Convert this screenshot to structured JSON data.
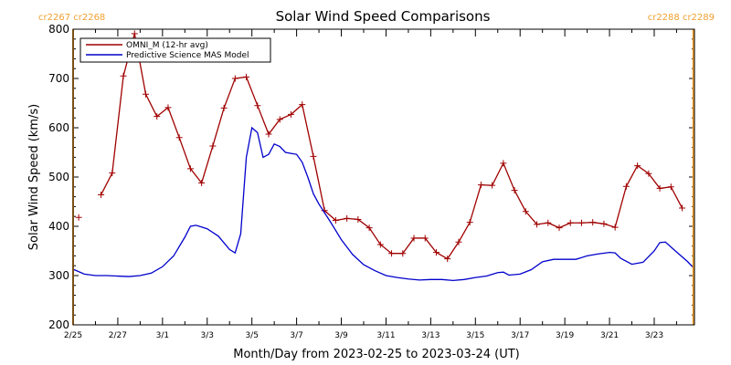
{
  "chart_data": {
    "type": "line",
    "title": "Solar Wind Speed Comparisons",
    "xlabel": "Month/Day from 2023-02-25 to 2023-03-24 (UT)",
    "ylabel": "Solar Wind Speed (km/s)",
    "xlim_days": [
      0,
      27.8
    ],
    "ylim": [
      200,
      800
    ],
    "yticks": [
      200,
      300,
      400,
      500,
      600,
      700,
      800
    ],
    "xticks": [
      {
        "day": 0,
        "label": "2/25"
      },
      {
        "day": 2,
        "label": "2/27"
      },
      {
        "day": 4,
        "label": "3/1"
      },
      {
        "day": 6,
        "label": "3/3"
      },
      {
        "day": 8,
        "label": "3/5"
      },
      {
        "day": 10,
        "label": "3/7"
      },
      {
        "day": 12,
        "label": "3/9"
      },
      {
        "day": 14,
        "label": "3/11"
      },
      {
        "day": 16,
        "label": "3/13"
      },
      {
        "day": 18,
        "label": "3/15"
      },
      {
        "day": 20,
        "label": "3/17"
      },
      {
        "day": 22,
        "label": "3/19"
      },
      {
        "day": 24,
        "label": "3/21"
      },
      {
        "day": 26,
        "label": "3/23"
      }
    ],
    "carrington_markers": [
      {
        "day": 0,
        "text": "cr2267 cr2268",
        "align": "left",
        "color": "#f0a030"
      },
      {
        "day": 27.75,
        "text": "cr2288 cr2289",
        "align": "right",
        "color": "#f0a030"
      }
    ],
    "legend_position": "top-left",
    "series": [
      {
        "name": "OMNI_M (12-hr avg)",
        "color": "#a00000",
        "markers": "plus",
        "segments": [
          [
            [
              0.25,
              418
            ]
          ],
          [
            [
              1.25,
              464
            ],
            [
              1.75,
              508
            ],
            [
              2.25,
              705
            ],
            [
              2.75,
              791
            ],
            [
              3.25,
              668
            ],
            [
              3.75,
              623
            ],
            [
              4.25,
              641
            ],
            [
              4.75,
              580
            ],
            [
              5.25,
              517
            ],
            [
              5.75,
              488
            ],
            [
              6.25,
              563
            ],
            [
              6.75,
              640
            ],
            [
              7.25,
              700
            ],
            [
              7.75,
              703
            ],
            [
              8.25,
              645
            ],
            [
              8.75,
              587
            ],
            [
              9.25,
              617
            ],
            [
              9.75,
              627
            ],
            [
              10.25,
              647
            ],
            [
              10.75,
              542
            ],
            [
              11.25,
              432
            ],
            [
              11.75,
              412
            ],
            [
              12.25,
              416
            ],
            [
              12.75,
              414
            ],
            [
              13.25,
              397
            ],
            [
              13.75,
              363
            ],
            [
              14.25,
              345
            ],
            [
              14.75,
              345
            ],
            [
              15.25,
              376
            ],
            [
              15.75,
              376
            ],
            [
              16.25,
              347
            ],
            [
              16.75,
              334
            ],
            [
              17.25,
              368
            ],
            [
              17.75,
              408
            ],
            [
              18.25,
              484
            ],
            [
              18.75,
              483
            ],
            [
              19.25,
              528
            ],
            [
              19.75,
              473
            ],
            [
              20.25,
              430
            ],
            [
              20.75,
              404
            ],
            [
              21.25,
              407
            ],
            [
              21.75,
              397
            ],
            [
              22.25,
              407
            ],
            [
              22.75,
              407
            ],
            [
              23.25,
              408
            ],
            [
              23.75,
              405
            ],
            [
              24.25,
              398
            ],
            [
              24.75,
              481
            ],
            [
              25.25,
              523
            ],
            [
              25.75,
              507
            ],
            [
              26.25,
              477
            ],
            [
              26.75,
              480
            ],
            [
              27.25,
              437
            ]
          ]
        ]
      },
      {
        "name": "Predictive Science MAS Model",
        "color": "#0000cc",
        "markers": "none",
        "segments": [
          [
            [
              0,
              313
            ],
            [
              0.5,
              303
            ],
            [
              1,
              300
            ],
            [
              1.5,
              300
            ],
            [
              2,
              299
            ],
            [
              2.5,
              298
            ],
            [
              3,
              300
            ],
            [
              3.5,
              305
            ],
            [
              4,
              318
            ],
            [
              4.5,
              340
            ],
            [
              5,
              378
            ],
            [
              5.25,
              400
            ],
            [
              5.5,
              402
            ],
            [
              6,
              395
            ],
            [
              6.5,
              380
            ],
            [
              7,
              353
            ],
            [
              7.25,
              346
            ],
            [
              7.5,
              385
            ],
            [
              7.75,
              540
            ],
            [
              8,
              600
            ],
            [
              8.25,
              590
            ],
            [
              8.5,
              540
            ],
            [
              8.75,
              546
            ],
            [
              9,
              567
            ],
            [
              9.25,
              562
            ],
            [
              9.5,
              550
            ],
            [
              9.75,
              548
            ],
            [
              10,
              546
            ],
            [
              10.25,
              530
            ],
            [
              10.5,
              500
            ],
            [
              10.75,
              466
            ],
            [
              11,
              445
            ],
            [
              11.5,
              410
            ],
            [
              12,
              373
            ],
            [
              12.5,
              343
            ],
            [
              13,
              322
            ],
            [
              13.5,
              310
            ],
            [
              14,
              300
            ],
            [
              14.5,
              296
            ],
            [
              15,
              293
            ],
            [
              15.5,
              291
            ],
            [
              16,
              292
            ],
            [
              16.5,
              292
            ],
            [
              17,
              290
            ],
            [
              17.5,
              292
            ],
            [
              18,
              296
            ],
            [
              18.5,
              299
            ],
            [
              19,
              306
            ],
            [
              19.25,
              307
            ],
            [
              19.5,
              301
            ],
            [
              20,
              303
            ],
            [
              20.5,
              312
            ],
            [
              21,
              328
            ],
            [
              21.5,
              333
            ],
            [
              22,
              333
            ],
            [
              22.5,
              333
            ],
            [
              23,
              340
            ],
            [
              23.5,
              344
            ],
            [
              24,
              347
            ],
            [
              24.25,
              346
            ],
            [
              24.5,
              335
            ],
            [
              25,
              323
            ],
            [
              25.5,
              327
            ],
            [
              26,
              350
            ],
            [
              26.25,
              367
            ],
            [
              26.5,
              368
            ],
            [
              27,
              348
            ],
            [
              27.5,
              328
            ],
            [
              27.75,
              316
            ]
          ]
        ]
      }
    ]
  }
}
